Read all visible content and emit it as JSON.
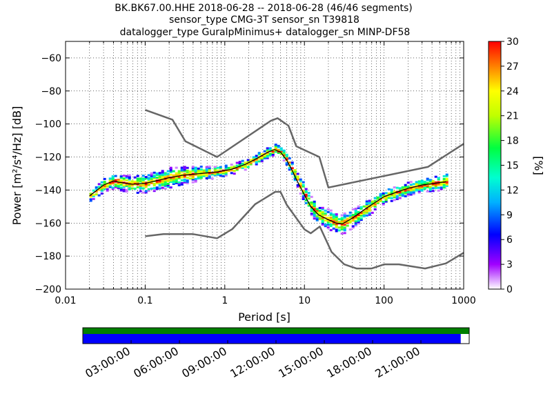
{
  "title": {
    "line1": "BK.BK67.00.HHE   2018-06-28 -- 2018-06-28  (46/46 segments)",
    "line2": "sensor_type CMG-3T sensor_sn T39818",
    "line3": "datalogger_type GuralpMinimus+ datalogger_sn MINP-DF58"
  },
  "chart_data": {
    "type": "heatmap",
    "xlabel": "Period [s]",
    "ylabel": "Power [m²/s⁴/Hz] [dB]",
    "xscale": "log",
    "xlim": [
      0.01,
      1000
    ],
    "ylim": [
      -200,
      -50
    ],
    "x_tick_labels": [
      "0.01",
      "0.1",
      "1",
      "10",
      "100",
      "1000"
    ],
    "x_tick_values": [
      0.01,
      0.1,
      1,
      10,
      100,
      1000
    ],
    "y_tick_labels": [
      "−60",
      "−80",
      "−100",
      "−120",
      "−140",
      "−160",
      "−180",
      "−200"
    ],
    "y_tick_values": [
      -60,
      -80,
      -100,
      -120,
      -140,
      -160,
      -180,
      -200
    ],
    "grid": true,
    "colorbar": {
      "label": "[%]",
      "range": [
        0,
        30
      ],
      "tick_labels": [
        "0",
        "3",
        "6",
        "9",
        "12",
        "15",
        "18",
        "21",
        "24",
        "27",
        "30"
      ],
      "tick_values": [
        0,
        3,
        6,
        9,
        12,
        15,
        18,
        21,
        24,
        27,
        30
      ],
      "colormap": "pqlx"
    },
    "series": [
      {
        "role": "NHNM",
        "color": "#666666",
        "points": [
          [
            0.1,
            -91.5
          ],
          [
            0.22,
            -97.4
          ],
          [
            0.32,
            -110.5
          ],
          [
            0.8,
            -120.0
          ],
          [
            3.8,
            -98.0
          ],
          [
            4.6,
            -96.5
          ],
          [
            6.3,
            -101.0
          ],
          [
            7.9,
            -113.5
          ],
          [
            15.4,
            -120.0
          ],
          [
            20.0,
            -138.5
          ],
          [
            354.8,
            -126.0
          ],
          [
            1000,
            -112.0
          ]
        ]
      },
      {
        "role": "NLNM",
        "color": "#666666",
        "points": [
          [
            0.1,
            -168.0
          ],
          [
            0.17,
            -166.7
          ],
          [
            0.4,
            -166.7
          ],
          [
            0.8,
            -169.2
          ],
          [
            1.24,
            -163.7
          ],
          [
            2.4,
            -148.6
          ],
          [
            4.3,
            -141.1
          ],
          [
            5.0,
            -141.1
          ],
          [
            6.0,
            -149.0
          ],
          [
            10.0,
            -163.8
          ],
          [
            12.0,
            -166.2
          ],
          [
            15.6,
            -162.1
          ],
          [
            21.9,
            -177.5
          ],
          [
            31.6,
            -185.0
          ],
          [
            45.0,
            -187.5
          ],
          [
            70.0,
            -187.5
          ],
          [
            101.0,
            -185.0
          ],
          [
            154.0,
            -185.0
          ],
          [
            328.0,
            -187.5
          ],
          [
            600.0,
            -184.4
          ],
          [
            1000,
            -178.0
          ]
        ]
      },
      {
        "role": "mode",
        "color": "#000000",
        "points": [
          [
            0.02,
            -143.5
          ],
          [
            0.025,
            -140.0
          ],
          [
            0.03,
            -137.0
          ],
          [
            0.04,
            -134.5
          ],
          [
            0.05,
            -135.5
          ],
          [
            0.07,
            -136.5
          ],
          [
            0.1,
            -136.0
          ],
          [
            0.15,
            -134.0
          ],
          [
            0.2,
            -132.5
          ],
          [
            0.3,
            -131.0
          ],
          [
            0.5,
            -130.0
          ],
          [
            0.8,
            -129.0
          ],
          [
            1.2,
            -127.5
          ],
          [
            1.8,
            -124.5
          ],
          [
            2.5,
            -121.0
          ],
          [
            3.5,
            -117.0
          ],
          [
            4.2,
            -115.5
          ],
          [
            5.0,
            -117.0
          ],
          [
            6.0,
            -122.0
          ],
          [
            7.0,
            -128.0
          ],
          [
            8.0,
            -134.0
          ],
          [
            10.0,
            -143.0
          ],
          [
            12.0,
            -150.0
          ],
          [
            15.0,
            -155.0
          ],
          [
            20.0,
            -158.0
          ],
          [
            25.0,
            -160.0
          ],
          [
            30.0,
            -160.5
          ],
          [
            40.0,
            -157.0
          ],
          [
            60.0,
            -151.0
          ],
          [
            100.0,
            -144.0
          ],
          [
            150.0,
            -141.0
          ],
          [
            200.0,
            -139.0
          ],
          [
            300.0,
            -137.0
          ],
          [
            600.0,
            -135.0
          ]
        ]
      }
    ],
    "density_band": {
      "center": "mode",
      "half_width_db": [
        [
          0.02,
          3
        ],
        [
          0.05,
          5
        ],
        [
          0.2,
          6
        ],
        [
          1,
          3
        ],
        [
          3,
          3
        ],
        [
          5,
          3
        ],
        [
          8,
          5
        ],
        [
          15,
          6
        ],
        [
          30,
          6
        ],
        [
          100,
          4
        ],
        [
          300,
          4
        ],
        [
          600,
          5
        ]
      ]
    },
    "segment_bars": {
      "data_coverage": {
        "color": "#008000",
        "fraction": 1.0
      },
      "segment_coverage": {
        "color": "#0000ff",
        "fraction": 0.978
      },
      "time_tick_labels": [
        "03:00:00",
        "06:00:00",
        "09:00:00",
        "12:00:00",
        "15:00:00",
        "18:00:00",
        "21:00:00"
      ],
      "time_tick_hours": [
        3,
        6,
        9,
        12,
        15,
        18,
        21
      ],
      "time_range_hours": [
        0,
        24
      ]
    }
  }
}
